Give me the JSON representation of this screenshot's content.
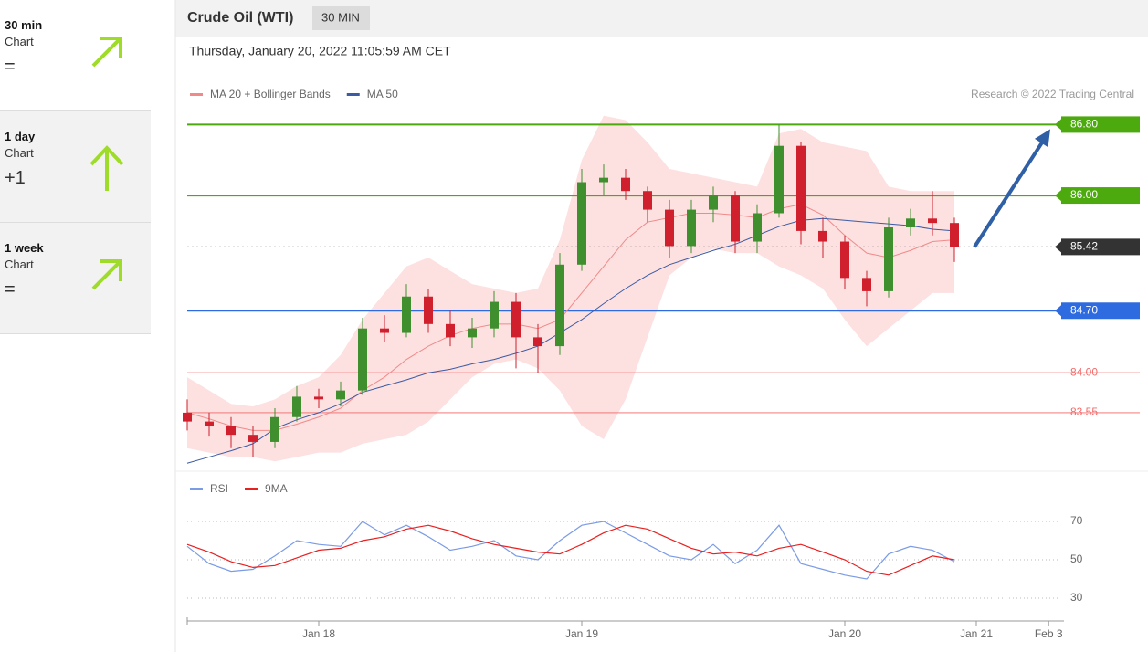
{
  "sidebar": [
    {
      "period": "30 min",
      "label": "Chart",
      "change": "="
    },
    {
      "period": "1 day",
      "label": "Chart",
      "change": "+1"
    },
    {
      "period": "1 week",
      "label": "Chart",
      "change": "="
    }
  ],
  "chart_data": {
    "type": "candlestick",
    "title": "Crude Oil (WTI)",
    "timeframe": "30 MIN",
    "subtitle": "Thursday, January 20, 2022 11:05:59 AM CET",
    "credit": "Research © 2022 Trading Central",
    "x": [
      0,
      2,
      4,
      6,
      8,
      10,
      12,
      14,
      16,
      18,
      20,
      22,
      24,
      26,
      28,
      30,
      32,
      34,
      36,
      38,
      40,
      42,
      44,
      46,
      48,
      50,
      52,
      54,
      56,
      58,
      60,
      62,
      64,
      66,
      68,
      70
    ],
    "xlim": [
      0,
      80
    ],
    "xticks": [
      {
        "value": 12,
        "label": "Jan 18"
      },
      {
        "value": 36,
        "label": "Jan 19"
      },
      {
        "value": 60,
        "label": "Jan 20"
      },
      {
        "value": 72,
        "label": "Jan 21"
      },
      {
        "value": 78.6,
        "label": "Feb 3"
      }
    ],
    "ylim": [
      82.9,
      87.0
    ],
    "up_color": "#3f8f2f",
    "down_color": "#d0202e",
    "open": [
      83.55,
      83.45,
      83.4,
      83.3,
      83.22,
      83.5,
      83.73,
      83.7,
      83.8,
      84.5,
      84.45,
      84.86,
      84.55,
      84.4,
      84.5,
      84.8,
      84.4,
      84.3,
      85.22,
      86.15,
      86.2,
      86.05,
      85.84,
      85.43,
      85.84,
      86.0,
      85.48,
      85.8,
      86.56,
      85.6,
      85.48,
      85.07,
      84.92,
      85.64,
      85.74,
      85.69
    ],
    "high": [
      83.7,
      83.55,
      83.5,
      83.4,
      83.6,
      83.85,
      83.82,
      83.9,
      84.62,
      84.65,
      85.0,
      84.95,
      84.7,
      84.62,
      84.92,
      84.9,
      84.55,
      85.35,
      86.3,
      86.35,
      86.3,
      86.1,
      85.95,
      85.95,
      86.1,
      86.05,
      85.9,
      86.8,
      86.6,
      85.75,
      85.55,
      85.15,
      85.75,
      85.85,
      86.05,
      85.75
    ],
    "low": [
      83.35,
      83.28,
      83.15,
      83.05,
      83.15,
      83.45,
      83.6,
      83.62,
      83.75,
      84.35,
      84.4,
      84.45,
      84.3,
      84.28,
      84.4,
      84.05,
      84.0,
      84.2,
      85.15,
      86.0,
      85.95,
      85.7,
      85.3,
      85.35,
      85.7,
      85.35,
      85.35,
      85.75,
      85.45,
      85.3,
      84.95,
      84.75,
      84.85,
      85.55,
      85.55,
      85.25
    ],
    "close": [
      83.45,
      83.4,
      83.3,
      83.22,
      83.5,
      83.73,
      83.7,
      83.8,
      84.5,
      84.45,
      84.86,
      84.55,
      84.4,
      84.5,
      84.8,
      84.4,
      84.3,
      85.22,
      86.15,
      86.2,
      86.05,
      85.84,
      85.43,
      85.84,
      86.0,
      85.48,
      85.8,
      86.56,
      85.6,
      85.48,
      85.07,
      84.92,
      85.64,
      85.74,
      85.69,
      85.42
    ],
    "overlays": [
      {
        "name": "MA 20 + Bollinger Bands",
        "color": "#f08a8a",
        "band_color": "#fde0e0",
        "values": [
          83.55,
          83.48,
          83.4,
          83.35,
          83.35,
          83.42,
          83.5,
          83.6,
          83.8,
          83.95,
          84.15,
          84.3,
          84.42,
          84.5,
          84.55,
          84.55,
          84.5,
          84.6,
          84.9,
          85.2,
          85.5,
          85.7,
          85.75,
          85.8,
          85.8,
          85.78,
          85.75,
          85.85,
          85.9,
          85.78,
          85.55,
          85.35,
          85.3,
          85.38,
          85.48,
          85.5
        ],
        "upper": [
          83.95,
          83.8,
          83.65,
          83.62,
          83.7,
          83.85,
          83.95,
          84.2,
          84.6,
          84.9,
          85.2,
          85.3,
          85.15,
          85.0,
          84.95,
          84.9,
          84.95,
          85.5,
          86.4,
          86.9,
          86.85,
          86.6,
          86.3,
          86.25,
          86.2,
          86.15,
          86.1,
          86.7,
          86.75,
          86.6,
          86.55,
          86.5,
          86.1,
          86.05,
          86.05,
          86.05
        ],
        "lower": [
          83.15,
          83.1,
          83.05,
          83.05,
          83.0,
          83.05,
          83.1,
          83.1,
          83.2,
          83.25,
          83.3,
          83.45,
          83.7,
          83.95,
          84.1,
          84.15,
          84.05,
          83.8,
          83.4,
          83.25,
          83.7,
          84.4,
          85.1,
          85.3,
          85.4,
          85.35,
          85.35,
          85.2,
          85.1,
          84.95,
          84.6,
          84.3,
          84.5,
          84.7,
          84.9,
          84.9
        ]
      },
      {
        "name": "MA 50",
        "color": "#3b5ba5",
        "values": [
          82.98,
          83.05,
          83.12,
          83.2,
          83.37,
          83.47,
          83.55,
          83.65,
          83.78,
          83.85,
          83.92,
          84.0,
          84.04,
          84.1,
          84.15,
          84.22,
          84.3,
          84.45,
          84.6,
          84.78,
          84.95,
          85.1,
          85.22,
          85.3,
          85.38,
          85.45,
          85.55,
          85.65,
          85.72,
          85.74,
          85.72,
          85.7,
          85.68,
          85.66,
          85.62,
          85.6
        ]
      }
    ],
    "levels": [
      {
        "value": 86.8,
        "label": "86.80",
        "color": "#4caa0e",
        "boxed": true,
        "dotted": false
      },
      {
        "value": 86.0,
        "label": "86.00",
        "color": "#4caa0e",
        "boxed": true,
        "dotted": false
      },
      {
        "value": 85.42,
        "label": "85.42",
        "color": "#333333",
        "boxed": true,
        "dotted": true
      },
      {
        "value": 84.7,
        "label": "84.70",
        "color": "#2f6be0",
        "boxed": true,
        "dotted": false
      },
      {
        "value": 84.0,
        "label": "84.00",
        "color": "#f26b6b",
        "boxed": false,
        "dotted": false
      },
      {
        "value": 83.55,
        "label": "83.55",
        "color": "#f26b6b",
        "boxed": false,
        "dotted": false
      }
    ],
    "target_color": "#2f5fa5",
    "rsi": {
      "ylim": [
        20,
        80
      ],
      "yticks": [
        30,
        50,
        70
      ],
      "series": [
        {
          "name": "RSI",
          "color": "#7b9be6",
          "values": [
            57,
            48,
            44,
            45,
            52,
            60,
            58,
            57,
            70,
            63,
            68,
            62,
            55,
            57,
            60,
            52,
            50,
            60,
            68,
            70,
            64,
            58,
            52,
            50,
            58,
            48,
            55,
            68,
            48,
            45,
            42,
            40,
            53,
            57,
            55,
            49
          ]
        },
        {
          "name": "9MA",
          "color": "#e82020",
          "values": [
            58,
            54,
            49,
            46,
            47,
            51,
            55,
            56,
            60,
            62,
            66,
            68,
            65,
            61,
            58,
            56,
            54,
            53,
            58,
            64,
            68,
            66,
            61,
            56,
            53,
            54,
            52,
            56,
            58,
            54,
            50,
            44,
            42,
            47,
            52,
            50
          ]
        }
      ]
    }
  }
}
